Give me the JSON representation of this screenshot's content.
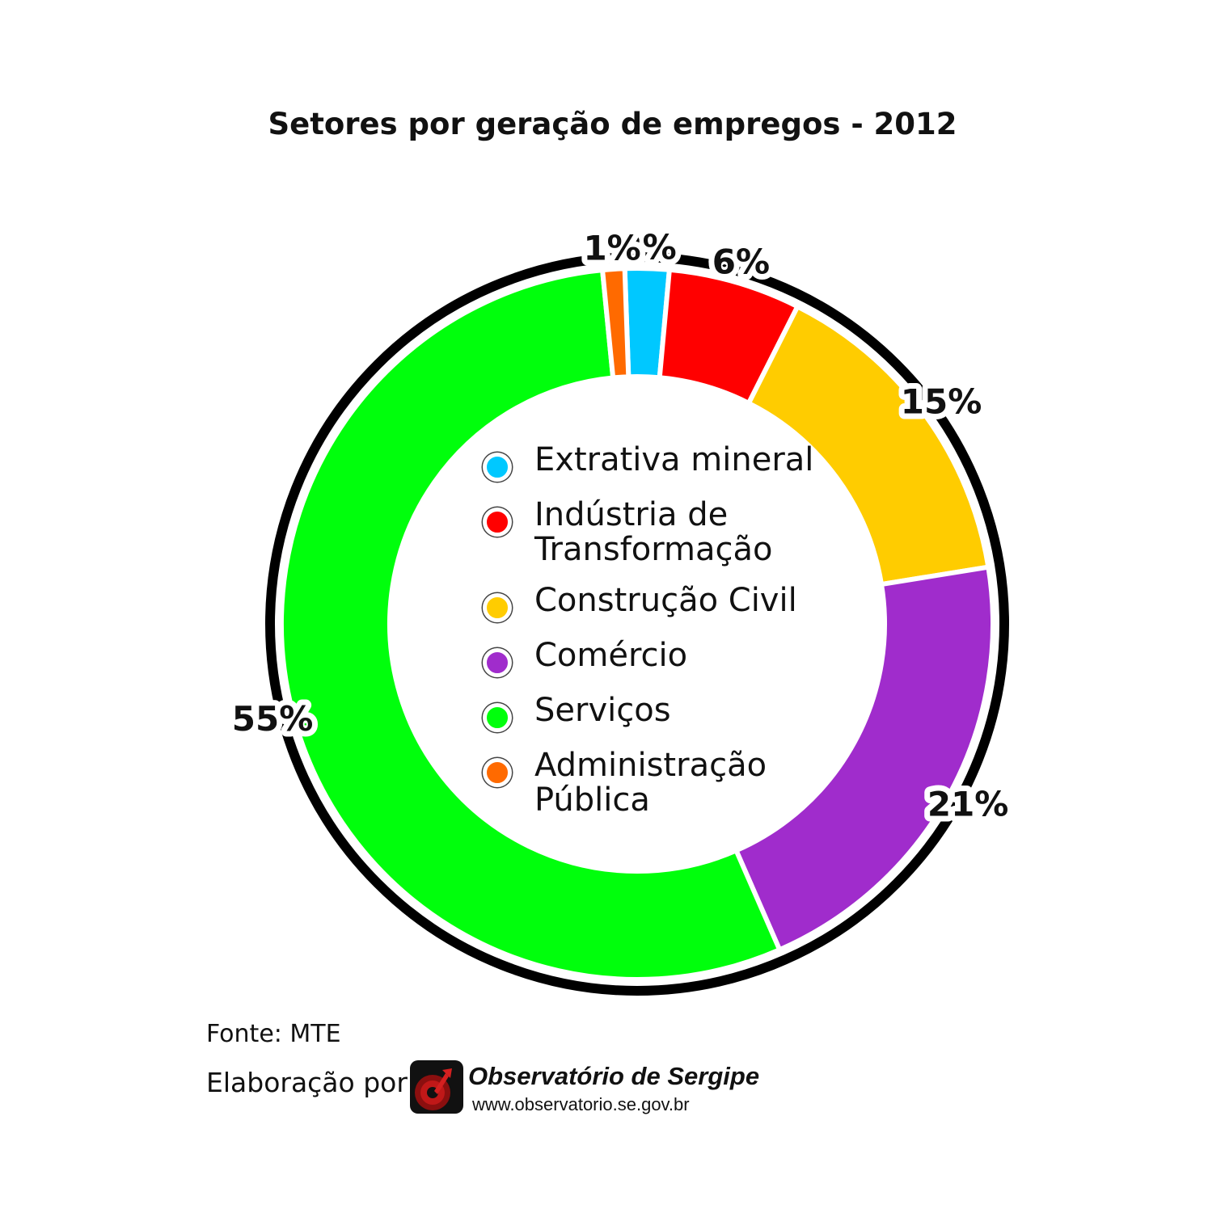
{
  "chart_data": {
    "type": "pie",
    "title": "Setores por geração de empregos - 2012",
    "categories": [
      "Extrativa mineral",
      "Indústria de Transformação",
      "Construção Civil",
      "Comércio",
      "Serviços",
      "Administração Pública"
    ],
    "values": [
      2,
      6,
      15,
      21,
      55,
      1
    ],
    "value_labels": [
      "2%",
      "6%",
      "15%",
      "21%",
      "55%",
      "1%"
    ],
    "colors": [
      "#00c8ff",
      "#ff0000",
      "#ffcc00",
      "#a02ccc",
      "#00ff0c",
      "#ff6a00"
    ],
    "donut": true,
    "legend_placement": "center"
  },
  "legend": [
    {
      "line1": "Extrativa mineral",
      "line2": "",
      "color": "#00c8ff"
    },
    {
      "line1": "Indústria de",
      "line2": "Transformação",
      "color": "#ff0000"
    },
    {
      "line1": "Construção Civil",
      "line2": "",
      "color": "#ffcc00"
    },
    {
      "line1": "Comércio",
      "line2": "",
      "color": "#a02ccc"
    },
    {
      "line1": "Serviços",
      "line2": "",
      "color": "#00ff0c"
    },
    {
      "line1": "Administração",
      "line2": "Pública",
      "color": "#ff6a00"
    }
  ],
  "footer": {
    "source": "Fonte: MTE",
    "made_by": "Elaboração por:",
    "org_name": "Observatório de Sergipe",
    "org_url": "www.observatorio.se.gov.br"
  }
}
